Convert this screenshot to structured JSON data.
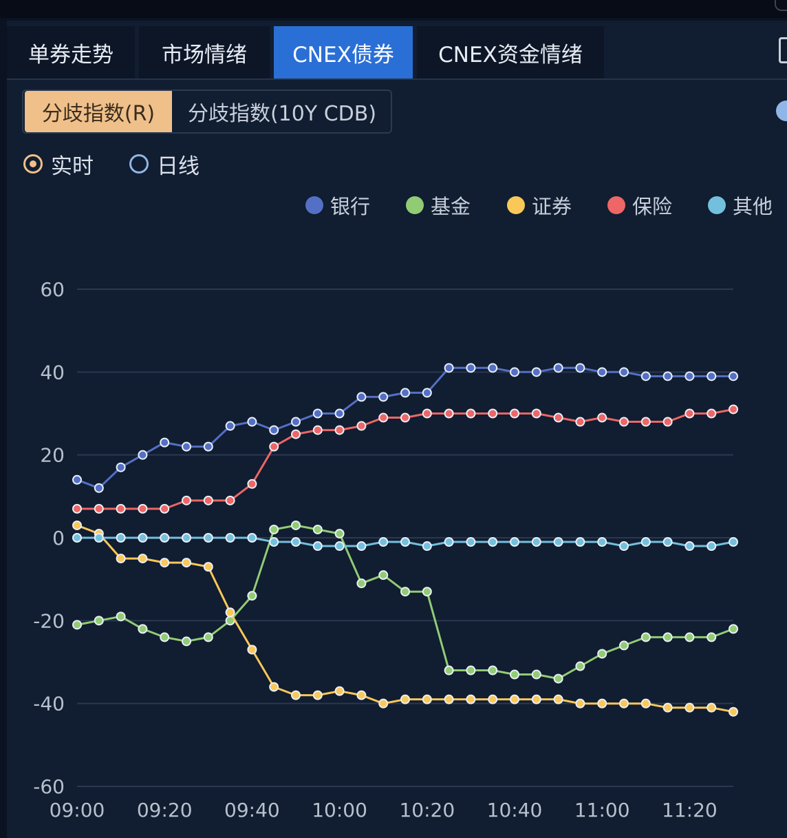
{
  "tabs": [
    {
      "label": "单券走势",
      "active": false
    },
    {
      "label": "市场情绪",
      "active": false
    },
    {
      "label": "CNEX债券",
      "active": true
    },
    {
      "label": "CNEX资金情绪",
      "active": false
    }
  ],
  "subtabs": [
    {
      "label": "分歧指数(R)",
      "active": true
    },
    {
      "label": "分歧指数(10Y CDB)",
      "active": false
    }
  ],
  "radios": [
    {
      "label": "实时",
      "checked": true
    },
    {
      "label": "日线",
      "checked": false
    }
  ],
  "colors": {
    "accent_tab": "#2a6fd6",
    "accent_subtab": "#f0c08a"
  },
  "chart_data": {
    "type": "line",
    "ylim": [
      -60,
      60
    ],
    "yticks": [
      "60",
      "40",
      "20",
      "0",
      "-20",
      "-40",
      "-60"
    ],
    "xtick_labels": [
      "09:00",
      "09:20",
      "09:40",
      "10:00",
      "10:20",
      "10:40",
      "11:00",
      "11:20"
    ],
    "x": [
      "09:00",
      "09:05",
      "09:10",
      "09:15",
      "09:20",
      "09:25",
      "09:30",
      "09:35",
      "09:40",
      "09:45",
      "09:50",
      "09:55",
      "10:00",
      "10:05",
      "10:10",
      "10:15",
      "10:20",
      "10:25",
      "10:30",
      "10:35",
      "10:40",
      "10:45",
      "10:50",
      "10:55",
      "11:00",
      "11:05",
      "11:10",
      "11:15",
      "11:20",
      "11:25",
      "11:30"
    ],
    "legend_position": "top-right",
    "grid": true,
    "series": [
      {
        "name": "银行",
        "color": "#5470c6",
        "values": [
          14,
          12,
          17,
          20,
          23,
          22,
          22,
          27,
          28,
          26,
          28,
          30,
          30,
          34,
          34,
          35,
          35,
          41,
          41,
          41,
          40,
          40,
          41,
          41,
          40,
          40,
          39,
          39,
          39,
          39,
          39
        ]
      },
      {
        "name": "基金",
        "color": "#91cc75",
        "values": [
          -21,
          -20,
          -19,
          -22,
          -24,
          -25,
          -24,
          -20,
          -14,
          2,
          3,
          2,
          1,
          -11,
          -9,
          -13,
          -13,
          -32,
          -32,
          -32,
          -33,
          -33,
          -34,
          -31,
          -28,
          -26,
          -24,
          -24,
          -24,
          -24,
          -22
        ]
      },
      {
        "name": "证券",
        "color": "#fac858",
        "values": [
          3,
          1,
          -5,
          -5,
          -6,
          -6,
          -7,
          -18,
          -27,
          -36,
          -38,
          -38,
          -37,
          -38,
          -40,
          -39,
          -39,
          -39,
          -39,
          -39,
          -39,
          -39,
          -39,
          -40,
          -40,
          -40,
          -40,
          -41,
          -41,
          -41,
          -42
        ]
      },
      {
        "name": "保险",
        "color": "#ee6666",
        "values": [
          7,
          7,
          7,
          7,
          7,
          9,
          9,
          9,
          13,
          22,
          25,
          26,
          26,
          27,
          29,
          29,
          30,
          30,
          30,
          30,
          30,
          30,
          29,
          28,
          29,
          28,
          28,
          28,
          30,
          30,
          31
        ]
      },
      {
        "name": "其他",
        "color": "#73c0de",
        "values": [
          0,
          0,
          0,
          0,
          0,
          0,
          0,
          0,
          0,
          -1,
          -1,
          -2,
          -2,
          -2,
          -1,
          -1,
          -2,
          -1,
          -1,
          -1,
          -1,
          -1,
          -1,
          -1,
          -1,
          -2,
          -1,
          -1,
          -2,
          -2,
          -1
        ]
      }
    ]
  }
}
